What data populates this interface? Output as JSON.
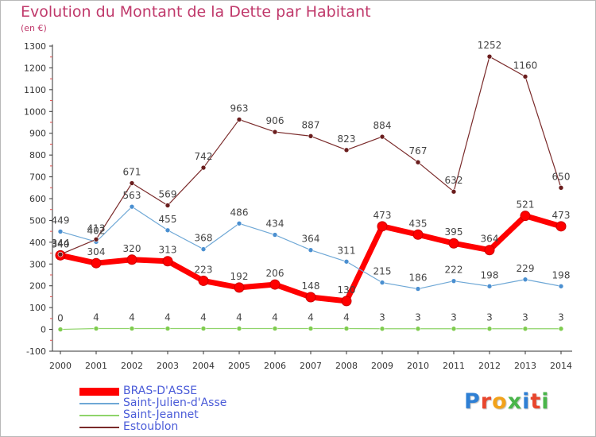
{
  "title": "Evolution du Montant de la Dette par Habitant",
  "unit": "(en €)",
  "logo": {
    "text": "Proxiti",
    "colors": [
      "#2e7fd4",
      "#e8452c",
      "#f2a21a",
      "#49b54a",
      "#2e7fd4",
      "#e8452c",
      "#49b54a"
    ]
  },
  "chart_data": {
    "type": "line",
    "title": "Evolution du Montant de la Dette par Habitant",
    "ylabel": "(en €)",
    "xlabel": "",
    "x": [
      "2000",
      "2001",
      "2002",
      "2003",
      "2004",
      "2005",
      "2006",
      "2007",
      "2008",
      "2009",
      "2010",
      "2011",
      "2012",
      "2013",
      "2014"
    ],
    "ylim": [
      -100,
      1300
    ],
    "yticks": [
      "-100",
      "0",
      "100",
      "200",
      "300",
      "400",
      "500",
      "600",
      "700",
      "800",
      "900",
      "1000",
      "1100",
      "1200",
      "1300"
    ],
    "grid": false,
    "legend_position": "bottom-left",
    "series": [
      {
        "name": "BRAS-D'ASSE",
        "color": "#ff0000",
        "values": [
          340,
          304,
          320,
          313,
          223,
          192,
          206,
          148,
          130,
          473,
          435,
          395,
          364,
          521,
          473
        ],
        "labels": [
          "340",
          "304",
          "320",
          "313",
          "223",
          "192",
          "206",
          "148",
          "130",
          "473",
          "435",
          "395",
          "364",
          "521",
          "473"
        ]
      },
      {
        "name": "Saint-Julien-d'Asse",
        "color": "#6fa8d6",
        "values": [
          449,
          402,
          563,
          455,
          368,
          486,
          434,
          364,
          311,
          215,
          186,
          222,
          198,
          229,
          198
        ],
        "labels": [
          "449",
          "402",
          "563",
          "455",
          "368",
          "486",
          "434",
          "364",
          "311",
          "215",
          "186",
          "222",
          "198",
          "229",
          "198"
        ]
      },
      {
        "name": "Saint-Jeannet",
        "color": "#8fd46a",
        "values": [
          0,
          4,
          4,
          4,
          4,
          4,
          4,
          4,
          4,
          3,
          3,
          3,
          3,
          3,
          3
        ],
        "labels": [
          "0",
          "4",
          "4",
          "4",
          "4",
          "4",
          "4",
          "4",
          "4",
          "3",
          "3",
          "3",
          "3",
          "3",
          "3"
        ]
      },
      {
        "name": "Estoublon",
        "color": "#7a2a2a",
        "values": [
          344,
          413,
          671,
          569,
          742,
          963,
          906,
          887,
          823,
          884,
          767,
          632,
          1252,
          1160,
          650
        ],
        "labels": [
          "344",
          "413",
          "671",
          "569",
          "742",
          "963",
          "906",
          "887",
          "823",
          "884",
          "767",
          "632",
          "1252",
          "1160",
          "650"
        ]
      }
    ]
  }
}
